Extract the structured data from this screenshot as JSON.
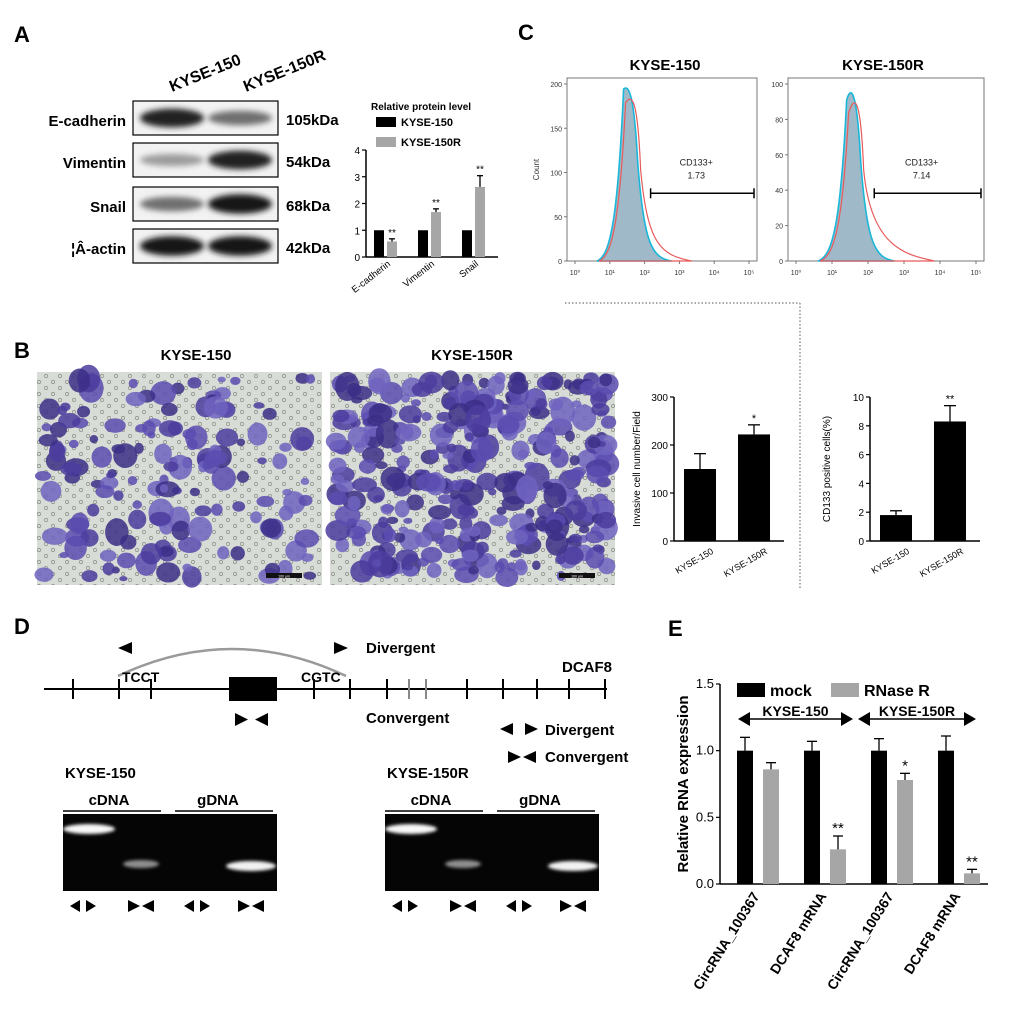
{
  "panels": {
    "A": {
      "letter": "A",
      "lanes": [
        "KYSE-150",
        "KYSE-150R"
      ],
      "blots": [
        {
          "protein": "E-cadherin",
          "size": "105kDa",
          "band_intensity": [
            0.9,
            0.55
          ]
        },
        {
          "protein": "Vimentin",
          "size": "54kDa",
          "band_intensity": [
            0.35,
            0.9
          ]
        },
        {
          "protein": "Snail",
          "size": "68kDa",
          "band_intensity": [
            0.55,
            0.95
          ]
        },
        {
          "protein": "¦Â-actin",
          "size": "42kDa",
          "band_intensity": [
            0.95,
            0.95
          ]
        }
      ]
    },
    "B": {
      "letter": "B",
      "image_labels": [
        "KYSE-150",
        "KYSE-150R"
      ],
      "scale_bar": "100 μm"
    },
    "C": {
      "letter": "C",
      "flow": [
        {
          "title": "KYSE-150",
          "gate_label": "CD133+",
          "gate_value": "1.73",
          "y_ticks": [
            "0",
            "50",
            "100",
            "150",
            "200"
          ],
          "y_axis_label": "Count"
        },
        {
          "title": "KYSE-150R",
          "gate_label": "CD133+",
          "gate_value": "7.14",
          "y_ticks": [
            "0",
            "20",
            "40",
            "60",
            "80",
            "100"
          ],
          "y_axis_label": ""
        }
      ],
      "x_ticks": [
        "10⁰",
        "10¹",
        "10²",
        "10³",
        "10⁴",
        "10⁵"
      ]
    },
    "D": {
      "letter": "D",
      "gene": "DCAF8",
      "left_seq": "TCCT",
      "right_seq": "CGTC",
      "divergent_label": "Divergent",
      "convergent_label": "Convergent",
      "legend_divergent": "Divergent",
      "legend_convergent": "Convergent",
      "gels": [
        {
          "cell": "KYSE-150",
          "cdna": "cDNA",
          "gdna": "gDNA"
        },
        {
          "cell": "KYSE-150R",
          "cdna": "cDNA",
          "gdna": "gDNA"
        }
      ]
    },
    "E": {
      "letter": "E"
    }
  },
  "chart_data": [
    {
      "id": "A-relative-protein",
      "type": "bar",
      "title": "Relative protein level",
      "categories": [
        "E-cadherin",
        "Vimentin",
        "Snail"
      ],
      "series": [
        {
          "name": "KYSE-150",
          "color": "#000000",
          "values": [
            1,
            1,
            1
          ],
          "err": [
            0,
            0,
            0
          ]
        },
        {
          "name": "KYSE-150R",
          "color": "#a6a6a6",
          "values": [
            0.58,
            1.68,
            2.62
          ],
          "err": [
            0.1,
            0.12,
            0.42
          ]
        }
      ],
      "significance": [
        "**",
        "**",
        "**"
      ],
      "ylim": [
        0,
        4
      ],
      "yticks": [
        0,
        1,
        2,
        3,
        4
      ],
      "legend": "top"
    },
    {
      "id": "B-invasive",
      "type": "bar",
      "categories": [
        "KYSE-150",
        "KYSE-150R"
      ],
      "values": [
        150,
        222
      ],
      "err": [
        32,
        20
      ],
      "significance": [
        "",
        "*"
      ],
      "ylabel": "Invasive cell number/Field",
      "ylim": [
        0,
        300
      ],
      "yticks": [
        0,
        100,
        200,
        300
      ]
    },
    {
      "id": "C-cd133",
      "type": "bar",
      "categories": [
        "KYSE-150",
        "KYSE-150R"
      ],
      "values": [
        1.8,
        8.3
      ],
      "err": [
        0.3,
        1.1
      ],
      "significance": [
        "",
        "**"
      ],
      "ylabel": "CD133 positive cells(%)",
      "ylim": [
        0,
        10
      ],
      "yticks": [
        0,
        2,
        4,
        6,
        8,
        10
      ]
    },
    {
      "id": "E-rnase",
      "type": "bar",
      "categories": [
        "CircRNA_100367",
        "DCAF8 mRNA",
        "CircRNA_100367",
        "DCAF8 mRNA"
      ],
      "groups": [
        "KYSE-150",
        "KYSE-150R"
      ],
      "series": [
        {
          "name": "mock",
          "color": "#000000",
          "values": [
            1.0,
            1.0,
            1.0,
            1.0
          ],
          "err": [
            0.1,
            0.07,
            0.09,
            0.11
          ]
        },
        {
          "name": "RNase R",
          "color": "#a6a6a6",
          "values": [
            0.86,
            0.26,
            0.78,
            0.08
          ],
          "err": [
            0.05,
            0.1,
            0.05,
            0.03
          ]
        }
      ],
      "significance": [
        "",
        "**",
        "*",
        "**"
      ],
      "ylabel": "Relative RNA expression",
      "ylim": [
        0,
        1.5
      ],
      "yticks": [
        "0.0",
        "0.5",
        "1.0",
        "1.5"
      ],
      "legend": "top"
    }
  ]
}
